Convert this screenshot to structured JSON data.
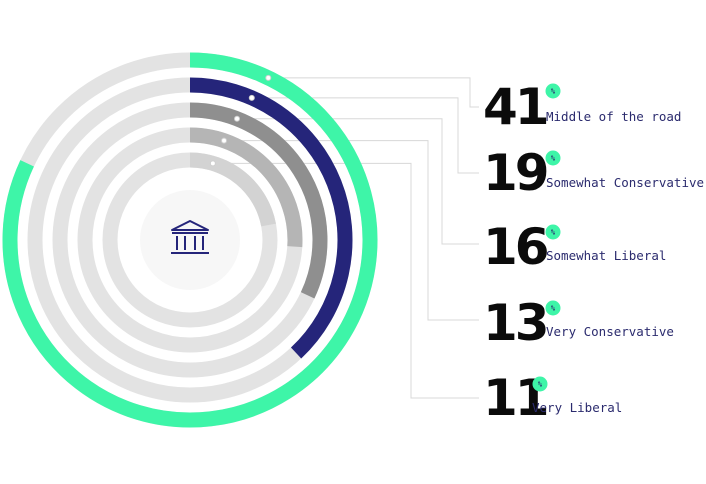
{
  "chart_data": {
    "type": "radial-bar",
    "unit": "%",
    "categories": [
      "Middle of the road",
      "Somewhat Conservative",
      "Somewhat Liberal",
      "Very Conservative",
      "Very Liberal"
    ],
    "values": [
      41,
      19,
      16,
      13,
      11
    ],
    "series_colors": [
      "#3ef5a8",
      "#25257a",
      "#8f8f8f",
      "#b5b5b5",
      "#d3d3d3"
    ],
    "track_color": "#e3e3e3",
    "label_color": "#2b2b6e",
    "center_icon": "bank-icon"
  }
}
